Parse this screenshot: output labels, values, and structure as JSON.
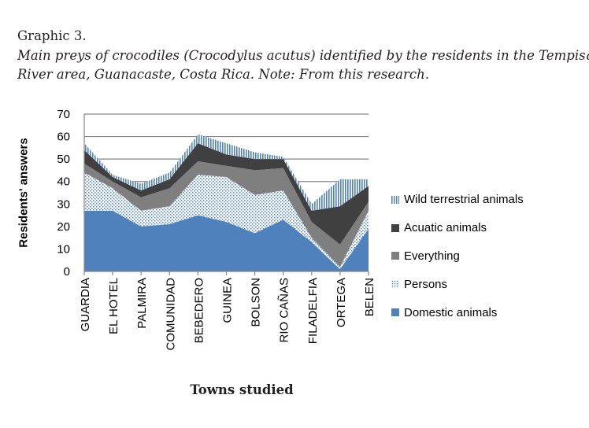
{
  "caption": {
    "label": "Graphic 3.",
    "line1": "Main preys of crocodiles (Crocodylus acutus) identified by the residents in the Tempisque",
    "line2": "River area, Guanacaste, Costa Rica. Note:  From this research."
  },
  "chart_data": {
    "type": "area",
    "stacked": true,
    "xlabel": "Towns studied",
    "ylabel": "Residents' answers",
    "ylim": [
      0,
      70
    ],
    "yticks": [
      "0",
      "10",
      "20",
      "30",
      "40",
      "50",
      "60",
      "70"
    ],
    "grid": true,
    "legend_position": "right",
    "categories": [
      "GUARDIA",
      "EL HOTEL",
      "PALMIRA",
      "COMUNIDAD",
      "BEBEDERO",
      "GUINEA",
      "BOLSON",
      "RIO CAÑAS",
      "FILADELFIA",
      "ORTEGA",
      "BELEN"
    ],
    "series": [
      {
        "name": "Domestic animals",
        "color": "#4f81bd",
        "pattern": "solid",
        "values": [
          27,
          27,
          20,
          21,
          25,
          22,
          17,
          23,
          13,
          1,
          19
        ]
      },
      {
        "name": "Persons",
        "color": "#4f81bd",
        "pattern": "dots",
        "values": [
          17,
          10,
          7,
          8,
          18,
          20,
          17,
          13,
          2,
          1,
          8
        ]
      },
      {
        "name": "Everything",
        "color": "#7f7f7f",
        "pattern": "solid",
        "values": [
          4,
          3,
          6,
          8,
          6,
          5,
          11,
          10,
          7,
          10,
          4
        ]
      },
      {
        "name": "Acuatic animals",
        "color": "#404040",
        "pattern": "solid",
        "values": [
          6,
          2,
          3,
          4,
          8,
          5,
          5,
          4,
          5,
          17,
          7
        ]
      },
      {
        "name": "Wild terrestrial animals",
        "color": "#4f81bd",
        "pattern": "vertical-stripes",
        "values": [
          3,
          1,
          3,
          3,
          4,
          5,
          3,
          1,
          3,
          12,
          3
        ]
      }
    ]
  }
}
